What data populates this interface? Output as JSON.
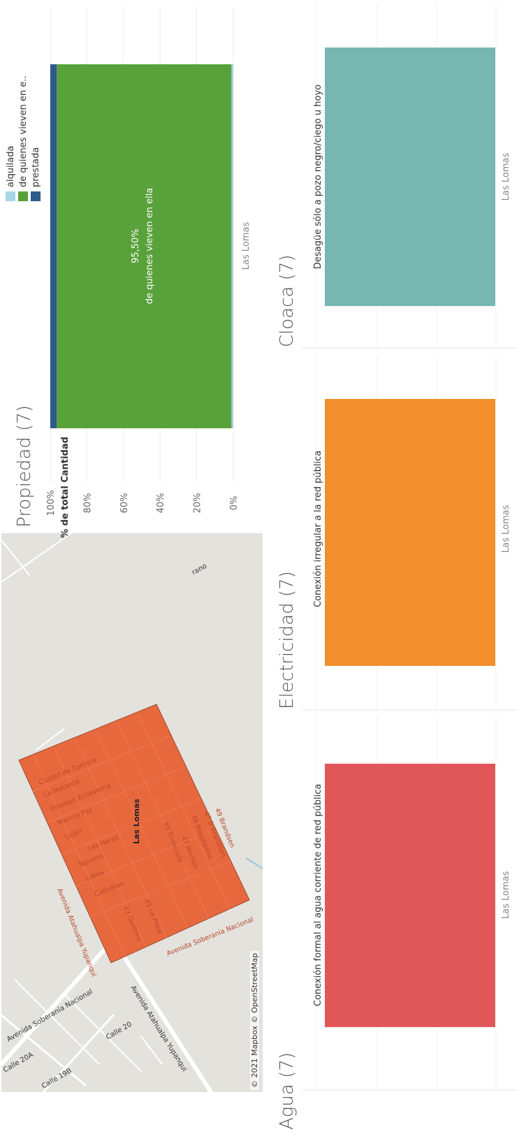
{
  "map": {
    "area_label": "Las Lomas",
    "attribution": "© 2021 Mapbox © OpenStreetMap",
    "road_labels": [
      "Avenida Soberanía Nacional",
      "Calle 20",
      "Calle 20A",
      "Calle 19B",
      "Avenida Atahualpa Yupanqui",
      "rano"
    ],
    "street_labels": [
      "Ciudad de Zamora",
      "La Matanza",
      "Esteban Echeverría",
      "Marcos Paz",
      "Luján",
      "Las Heras",
      "Navarro",
      "Lobos",
      "Cañuelas",
      "43 Quilmes",
      "45 La Plata",
      "46 Ensenada",
      "47 Berisso",
      "48 Magdalena",
      "47 B Brandsen",
      "49 Brandsen",
      "Avenida Soberanía Nacional",
      "Avenida Atahualpa Yupanqui"
    ],
    "area_color": "#e8683e"
  },
  "propiedad": {
    "title": "Propiedad (7)",
    "ylabel": "% de total Cantidad",
    "ticks": [
      "0%",
      "20%",
      "40%",
      "60%",
      "80%",
      "100%"
    ],
    "category": "Las Lomas",
    "data_label_value": "95,50%",
    "data_label_name": "de quienes vieven en ella",
    "legend": [
      "alquilada",
      "de quienes vieven en e..",
      "prestada"
    ]
  },
  "agua": {
    "title": "Agua (7)",
    "bar_label": "Conexión formal al agua corriente de red pública",
    "category": "Las Lomas",
    "color": "#e0575a"
  },
  "electricidad": {
    "title": "Electricidad (7)",
    "bar_label": "Conexión irregular a la red pública",
    "category": "Las Lomas",
    "color": "#f28e2b"
  },
  "cloaca": {
    "title": "Cloaca (7)",
    "bar_label": "Desagüe sólo a pozo negro/ciego u hoyo",
    "category": "Las Lomas",
    "color": "#76b7b2"
  },
  "chart_data": [
    {
      "type": "bar",
      "title": "Propiedad (7)",
      "ylabel": "% de total Cantidad",
      "categories": [
        "Las Lomas"
      ],
      "stacked": true,
      "ylim": [
        0,
        100
      ],
      "series": [
        {
          "name": "alquilada",
          "values": [
            1.0
          ],
          "color": "#a8d5e8"
        },
        {
          "name": "de quienes vieven en e..",
          "values": [
            95.5
          ],
          "color": "#59a13a"
        },
        {
          "name": "prestada",
          "values": [
            3.5
          ],
          "color": "#2d5b8c"
        }
      ]
    },
    {
      "type": "bar",
      "title": "Agua (7)",
      "categories": [
        "Las Lomas"
      ],
      "series": [
        {
          "name": "Conexión formal al agua corriente de red pública",
          "values": [
            100
          ]
        }
      ]
    },
    {
      "type": "bar",
      "title": "Electricidad (7)",
      "categories": [
        "Las Lomas"
      ],
      "series": [
        {
          "name": "Conexión irregular a la red pública",
          "values": [
            100
          ]
        }
      ]
    },
    {
      "type": "bar",
      "title": "Cloaca (7)",
      "categories": [
        "Las Lomas"
      ],
      "series": [
        {
          "name": "Desagüe sólo a pozo negro/ciego u hoyo",
          "values": [
            100
          ]
        }
      ]
    }
  ]
}
